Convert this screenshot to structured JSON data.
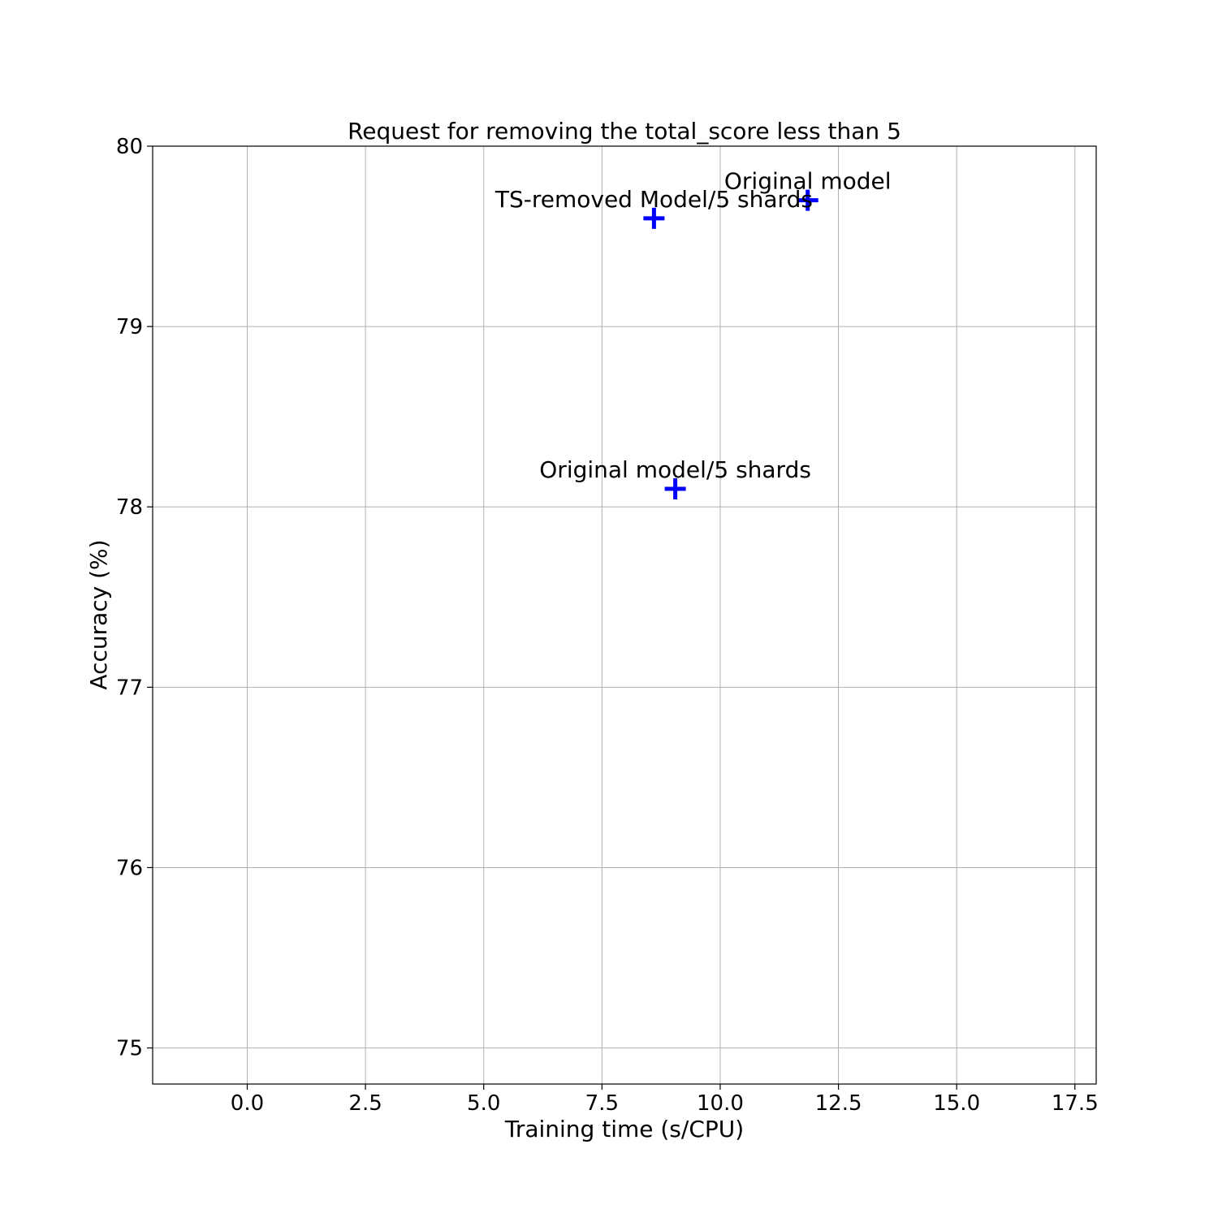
{
  "chart_data": {
    "type": "scatter",
    "title": "Request for removing the total_score less than 5",
    "xlabel": "Training time (s/CPU)",
    "ylabel": "Accuracy (%)",
    "xlim": [
      -2.0,
      17.95
    ],
    "ylim": [
      74.8,
      80.0
    ],
    "xticks": [
      0.0,
      2.5,
      5.0,
      7.5,
      10.0,
      12.5,
      15.0,
      17.5
    ],
    "xtick_labels": [
      "0.0",
      "2.5",
      "5.0",
      "7.5",
      "10.0",
      "12.5",
      "15.0",
      "17.5"
    ],
    "yticks": [
      75,
      76,
      77,
      78,
      79,
      80
    ],
    "ytick_labels": [
      "75",
      "76",
      "77",
      "78",
      "79",
      "80"
    ],
    "grid": true,
    "marker": "plus",
    "color": "#0000ff",
    "points": [
      {
        "label": "Original model",
        "x": 11.85,
        "y": 79.7
      },
      {
        "label": "TS-removed Model/5 shards",
        "x": 8.6,
        "y": 79.6
      },
      {
        "label": "Original model/5 shards",
        "x": 9.05,
        "y": 78.1
      }
    ]
  }
}
